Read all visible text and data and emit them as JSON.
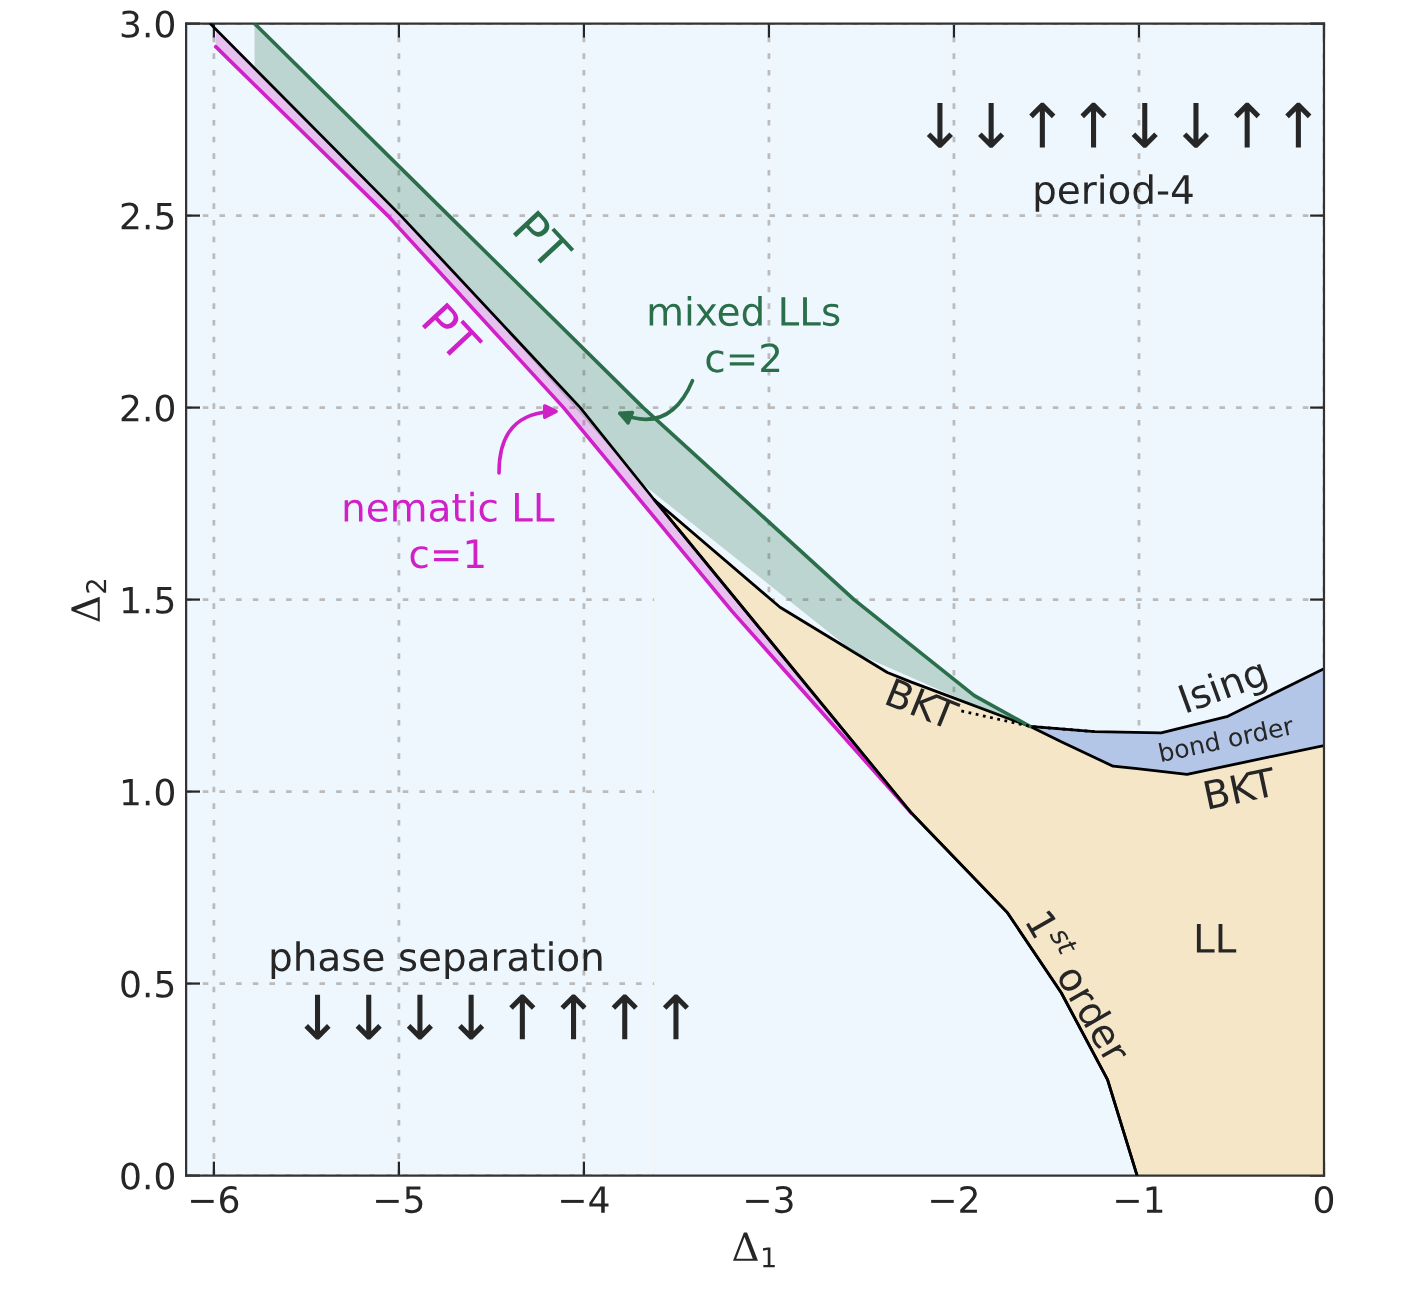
{
  "chart_data": {
    "type": "line",
    "xlabel": "Δ$_{1}$",
    "ylabel": "Δ$_{2}$",
    "xlim": [
      -6.15,
      0
    ],
    "ylim": [
      0,
      3.0
    ],
    "xticks": [
      {
        "value": -6,
        "label": "−6"
      },
      {
        "value": -5,
        "label": "−5"
      },
      {
        "value": -4,
        "label": "−4"
      },
      {
        "value": -3,
        "label": "−3"
      },
      {
        "value": -2,
        "label": "−2"
      },
      {
        "value": -1,
        "label": "−1"
      },
      0
    ],
    "yticks": [
      {
        "value": 0,
        "label": "0.0"
      },
      {
        "value": 0.5,
        "label": "0.5"
      },
      {
        "value": 1.0,
        "label": "1.0"
      },
      {
        "value": 1.5,
        "label": "1.5"
      },
      {
        "value": 2.0,
        "label": "2.0"
      },
      {
        "value": 2.5,
        "label": "2.5"
      },
      {
        "value": 3.0,
        "label": "3.0"
      }
    ],
    "grid": true,
    "series": [
      {
        "type": "area",
        "color": "#b4c6e8",
        "x": [
          -1.59,
          -1.24,
          -0.88,
          -0.52,
          0
        ],
        "values": [
          1.17,
          1.156,
          1.153,
          1.196,
          1.32
        ]
      },
      {
        "type": "area",
        "color": "#f5e6c8",
        "x": [
          -3.62,
          -2.94,
          -2.36,
          -2.23,
          -1.59,
          -1.42,
          -1.14,
          -1.01,
          -0.74,
          0
        ],
        "values": [
          1.76,
          1.48,
          1.31,
          1.285,
          1.17,
          1.13,
          1.066,
          1.06,
          1.045,
          1.12
        ]
      },
      {
        "type": "area",
        "color": "#eef7fe",
        "x": [
          -3.62,
          -2.23,
          -1.71,
          -1.42,
          -1.17,
          -1.01
        ],
        "values": [
          1.76,
          0.944,
          0.684,
          0.476,
          0.25,
          0
        ]
      },
      {
        "color": "#2a6e4a",
        "x": [
          -5.78,
          -4.73,
          -3.68,
          -2.54,
          -1.89,
          -1.59
        ],
        "values": [
          3.0,
          2.5,
          2.0,
          1.5,
          1.25,
          1.17
        ],
        "lower": [
          2.883,
          2.37,
          1.8,
          1.363,
          1.225,
          1.17
        ],
        "upper": [
          3.0,
          2.5,
          2.0,
          1.5,
          1.25,
          1.17
        ]
      },
      {
        "color": "#d020c8",
        "x": [
          -5.99,
          -5.06,
          -4.11,
          -3.2,
          -2.23
        ],
        "values": [
          2.94,
          2.5,
          2.0,
          1.47,
          0.944
        ],
        "lower": [
          2.94,
          2.5,
          2.0,
          1.47,
          0.944
        ],
        "upper": [
          2.985,
          2.535,
          2.045,
          1.51,
          0.944
        ]
      },
      {
        "color": "#000000",
        "x": [
          -6.02,
          -4.99,
          -4.02,
          -3.62,
          -2.23,
          -1.71,
          -1.42,
          -1.17,
          -1.01
        ],
        "values": [
          3.0,
          2.5,
          2.0,
          1.76,
          0.944,
          0.684,
          0.476,
          0.25,
          0
        ]
      },
      {
        "color": "#000000",
        "line_style": "dotted",
        "x": [
          -1.96,
          -1.59,
          -1.24
        ],
        "values": [
          1.21,
          1.17,
          1.156
        ]
      }
    ],
    "annotations": [
      "PT",
      "PT",
      "mixed LLs\nc=2",
      {
        "text": "nematic LL\nc=1",
        "x": -4.13,
        "y": 1.99
      },
      "↓↓↑↑↓↓↑↑",
      "period-4",
      "phase separation",
      "↓↓↓↓↑↑↑↑",
      "BKT",
      "Ising",
      "bond order",
      "BKT",
      "1$^{st}$ order",
      "LL"
    ]
  }
}
